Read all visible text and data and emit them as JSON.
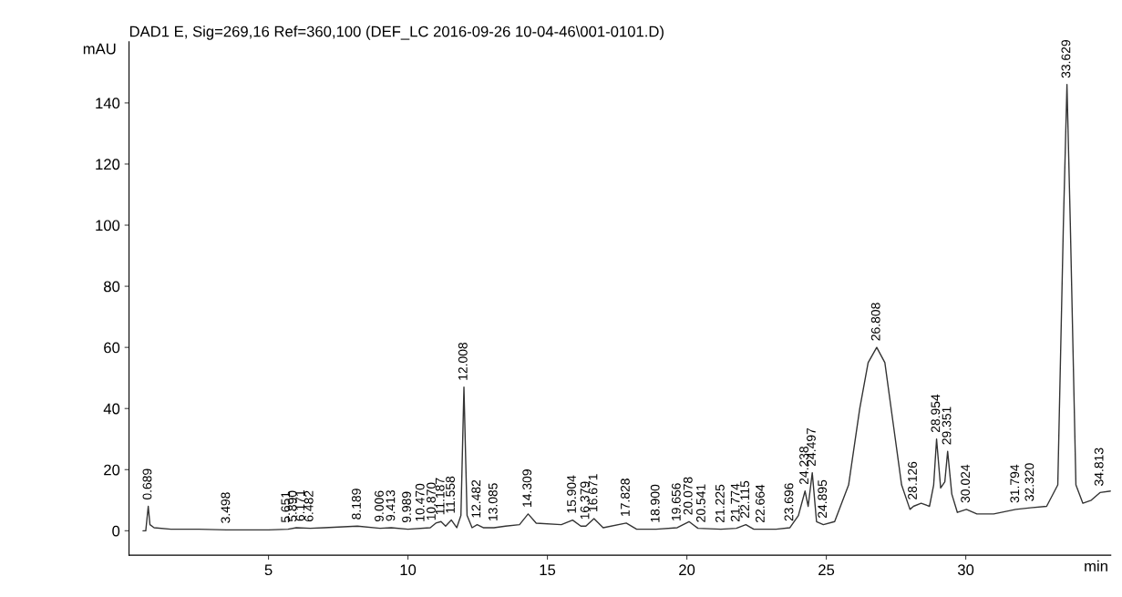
{
  "chart_data": {
    "type": "line",
    "title": "DAD1 E, Sig=269,16 Ref=360,100 (DEF_LC 2016-09-26 10-04-46\\001-0101.D)",
    "xlabel": "min",
    "ylabel": "mAU",
    "xlim": [
      0,
      35.2
    ],
    "xticks": [
      5,
      10,
      15,
      20,
      25,
      30
    ],
    "ylim": [
      -8,
      160
    ],
    "yticks": [
      0,
      20,
      40,
      60,
      80,
      100,
      120,
      140
    ],
    "grid": false,
    "legend": false,
    "series": [
      {
        "color": "#333333",
        "x": [
          0.5,
          0.6,
          0.689,
          0.75,
          0.9,
          1.5,
          2.5,
          3.5,
          5,
          5.7,
          6.0,
          6.5,
          7,
          8.189,
          9.0,
          9.4,
          10,
          10.8,
          11.0,
          11.187,
          11.35,
          11.558,
          11.75,
          11.9,
          12.008,
          12.12,
          12.3,
          12.482,
          12.7,
          13.085,
          13.5,
          14.0,
          14.309,
          14.6,
          15.5,
          15.904,
          16.2,
          16.379,
          16.671,
          17.0,
          17.828,
          18.2,
          18.9,
          19.656,
          20.078,
          20.4,
          21.225,
          21.774,
          22.115,
          22.4,
          22.664,
          23.2,
          23.696,
          24.0,
          24.238,
          24.35,
          24.497,
          24.65,
          24.895,
          25.3,
          25.8,
          26.2,
          26.5,
          26.808,
          27.1,
          27.4,
          27.7,
          28.0,
          28.126,
          28.4,
          28.7,
          28.85,
          28.954,
          29.1,
          29.25,
          29.351,
          29.5,
          29.7,
          30.024,
          30.4,
          31.0,
          31.794,
          32.32,
          32.9,
          33.3,
          33.5,
          33.629,
          33.75,
          33.95,
          34.2,
          34.5,
          34.813,
          35.2
        ],
        "values": [
          0,
          0,
          8,
          2,
          1,
          0.5,
          0.5,
          0.3,
          0.3,
          0.5,
          1,
          0.8,
          1,
          1.5,
          0.8,
          1,
          0.5,
          1,
          2.5,
          3,
          1.5,
          3.5,
          1,
          5,
          47,
          5,
          1,
          2,
          1,
          1,
          1.5,
          2,
          5.5,
          2.5,
          2,
          3.5,
          1.5,
          1.5,
          4,
          1,
          2.5,
          0.5,
          0.5,
          1,
          3,
          0.8,
          0.5,
          0.8,
          2,
          0.5,
          0.5,
          0.5,
          1,
          5,
          13,
          8,
          19,
          3,
          2,
          3,
          15,
          40,
          55,
          60,
          55,
          35,
          15,
          7,
          8,
          9,
          8,
          15,
          30,
          14,
          16,
          26,
          12,
          6,
          7,
          5.5,
          5.5,
          7,
          7.5,
          8,
          15,
          100,
          146,
          100,
          15,
          9,
          10,
          12.5,
          13
        ]
      }
    ],
    "annotations": [
      {
        "text": "0.689",
        "x": 0.689,
        "y": 8
      },
      {
        "text": "3.498",
        "x": 3.498,
        "y": 0.3
      },
      {
        "text": "5.651",
        "x": 5.651,
        "y": 0.5
      },
      {
        "text": "5.890",
        "x": 5.89,
        "y": 0.8
      },
      {
        "text": "6.171",
        "x": 6.171,
        "y": 1
      },
      {
        "text": "6.482",
        "x": 6.482,
        "y": 0.8
      },
      {
        "text": "8.189",
        "x": 8.189,
        "y": 1.5
      },
      {
        "text": "9.006",
        "x": 9.006,
        "y": 0.8
      },
      {
        "text": "9.413",
        "x": 9.413,
        "y": 1
      },
      {
        "text": "9.989",
        "x": 9.989,
        "y": 0.5
      },
      {
        "text": "10.470",
        "x": 10.47,
        "y": 0.8
      },
      {
        "text": "10.870",
        "x": 10.87,
        "y": 1.2
      },
      {
        "text": "11.187",
        "x": 11.187,
        "y": 3
      },
      {
        "text": "11.558",
        "x": 11.558,
        "y": 3.5
      },
      {
        "text": "12.008",
        "x": 12.008,
        "y": 47
      },
      {
        "text": "12.482",
        "x": 12.482,
        "y": 2
      },
      {
        "text": "13.085",
        "x": 13.085,
        "y": 1
      },
      {
        "text": "14.309",
        "x": 14.309,
        "y": 5.5
      },
      {
        "text": "15.904",
        "x": 15.904,
        "y": 3.5
      },
      {
        "text": "16.379",
        "x": 16.379,
        "y": 1.5
      },
      {
        "text": "16.671",
        "x": 16.671,
        "y": 4
      },
      {
        "text": "17.828",
        "x": 17.828,
        "y": 2.5
      },
      {
        "text": "18.900",
        "x": 18.9,
        "y": 0.5
      },
      {
        "text": "19.656",
        "x": 19.656,
        "y": 1
      },
      {
        "text": "20.078",
        "x": 20.078,
        "y": 3
      },
      {
        "text": "20.541",
        "x": 20.541,
        "y": 0.6
      },
      {
        "text": "21.225",
        "x": 21.225,
        "y": 0.5
      },
      {
        "text": "21.774",
        "x": 21.774,
        "y": 0.8
      },
      {
        "text": "22.115",
        "x": 22.115,
        "y": 2
      },
      {
        "text": "22.664",
        "x": 22.664,
        "y": 0.5
      },
      {
        "text": "23.696",
        "x": 23.696,
        "y": 1
      },
      {
        "text": "24.238",
        "x": 24.238,
        "y": 13
      },
      {
        "text": "24.497",
        "x": 24.497,
        "y": 19
      },
      {
        "text": "24.895",
        "x": 24.895,
        "y": 2
      },
      {
        "text": "26.808",
        "x": 26.808,
        "y": 60
      },
      {
        "text": "28.126",
        "x": 28.126,
        "y": 8
      },
      {
        "text": "28.954",
        "x": 28.954,
        "y": 30
      },
      {
        "text": "29.351",
        "x": 29.351,
        "y": 26
      },
      {
        "text": "30.024",
        "x": 30.024,
        "y": 7
      },
      {
        "text": "31.794",
        "x": 31.794,
        "y": 7
      },
      {
        "text": "32.320",
        "x": 32.32,
        "y": 7.5
      },
      {
        "text": "33.629",
        "x": 33.629,
        "y": 146
      },
      {
        "text": "34.813",
        "x": 34.813,
        "y": 12.5
      }
    ]
  }
}
